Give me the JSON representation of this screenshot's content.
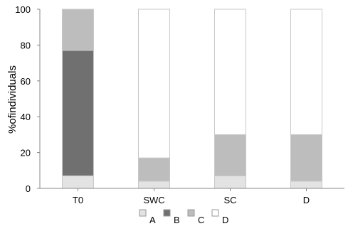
{
  "chart_data": {
    "type": "bar",
    "stacked": true,
    "title": "",
    "xlabel": "",
    "ylabel": "%ofindividuals",
    "ylim": [
      0,
      100
    ],
    "yticks": [
      0,
      20,
      40,
      60,
      80,
      100
    ],
    "categories": [
      "T0",
      "SWC",
      "SC",
      "D"
    ],
    "series": [
      {
        "name": "A",
        "color": "#e3e3e3",
        "values": [
          7,
          4,
          7,
          4
        ]
      },
      {
        "name": "B",
        "color": "#707070",
        "values": [
          70,
          0,
          0,
          0
        ]
      },
      {
        "name": "C",
        "color": "#bdbdbd",
        "values": [
          23,
          13,
          23,
          26
        ]
      },
      {
        "name": "D",
        "color": "#ffffff",
        "values": [
          0,
          83,
          70,
          70
        ]
      }
    ],
    "legend_position": "bottom",
    "grid": false
  }
}
